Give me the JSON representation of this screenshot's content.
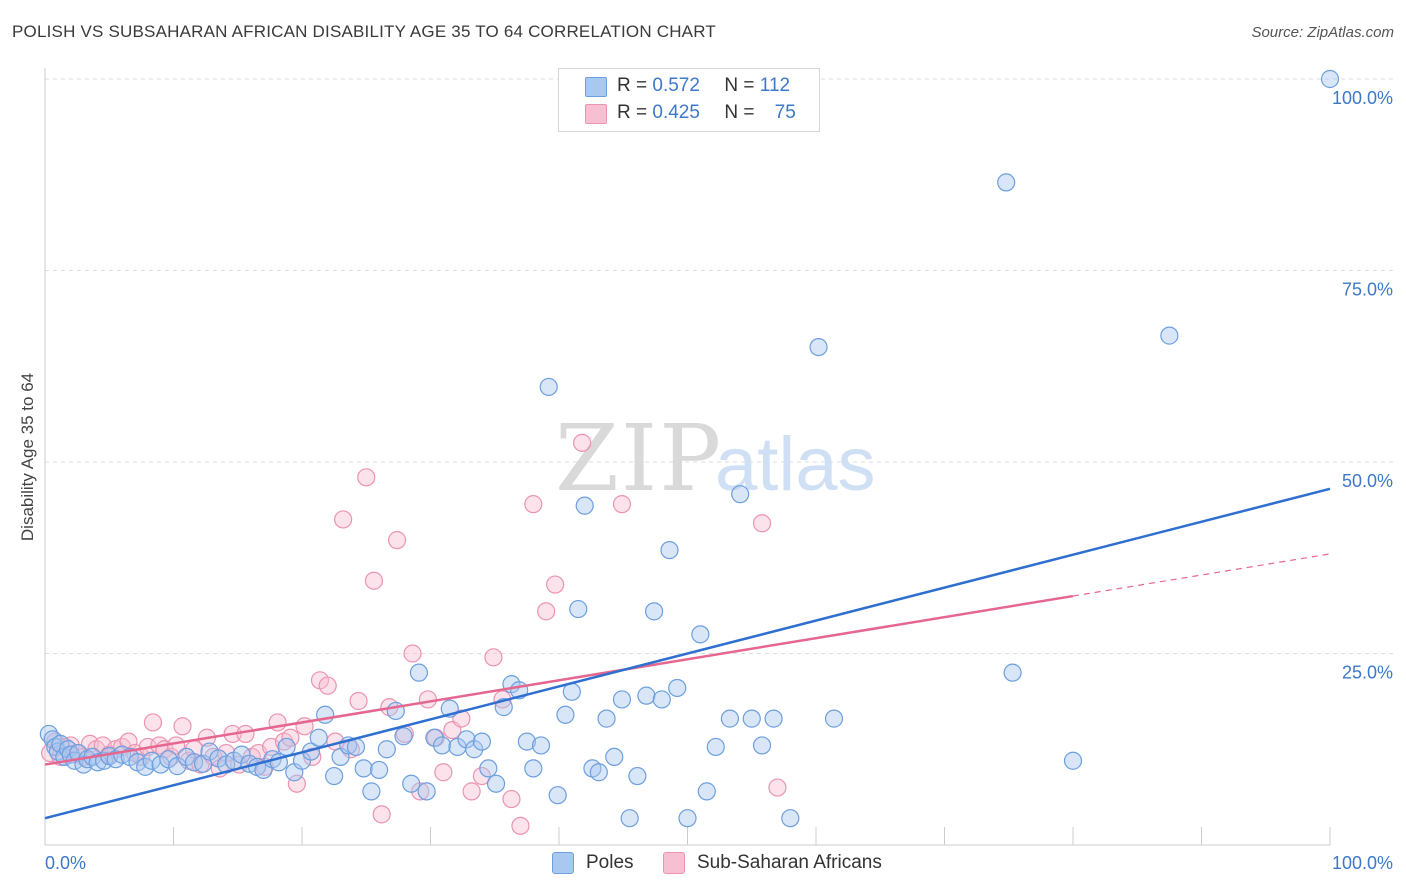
{
  "title": "POLISH VS SUBSAHARAN AFRICAN DISABILITY AGE 35 TO 64 CORRELATION CHART",
  "source": "Source: ZipAtlas.com",
  "watermark": {
    "zip": "ZIP",
    "atlas": "atlas"
  },
  "legend": {
    "r_label": "R =",
    "n_label": "N =",
    "poles": {
      "r": "0.572",
      "n": "112"
    },
    "africans": {
      "r": "0.425",
      "n": "75"
    }
  },
  "colors": {
    "poles_fill": "#a9c8f0",
    "poles_stroke": "#6d9fde",
    "poles_line": "#2e6fd0",
    "africans_fill": "#f7bfd2",
    "africans_stroke": "#ec93b3",
    "africans_line": "#e5668f",
    "tick_label": "#3d78c9",
    "grid": "#dcdcdc"
  },
  "chart_data": {
    "type": "scatter",
    "title": "POLISH VS SUBSAHARAN AFRICAN DISABILITY AGE 35 TO 64 CORRELATION CHART",
    "xlabel": "",
    "ylabel": "Disability Age 35 to 64",
    "xlim": [
      0,
      100
    ],
    "ylim": [
      0,
      100
    ],
    "x_tick_labels": [
      "0.0%",
      "100.0%"
    ],
    "y_tick_labels": [
      "25.0%",
      "50.0%",
      "75.0%",
      "100.0%"
    ],
    "y_ticks": [
      25,
      50,
      75,
      100
    ],
    "grid": true,
    "legend_position": "top-center",
    "series": [
      {
        "name": "Poles",
        "r": 0.572,
        "n": 112,
        "trend": {
          "x0": 0,
          "y0": 3.5,
          "x1": 100,
          "y1": 46.5
        },
        "points": [
          [
            0.3,
            14.5
          ],
          [
            0.6,
            13.8
          ],
          [
            0.8,
            12.8
          ],
          [
            1.0,
            12.2
          ],
          [
            1.2,
            13.2
          ],
          [
            1.5,
            11.5
          ],
          [
            1.8,
            12.5
          ],
          [
            2.0,
            11.8
          ],
          [
            2.3,
            11.0
          ],
          [
            2.6,
            12.0
          ],
          [
            3.0,
            10.5
          ],
          [
            3.3,
            11.2
          ],
          [
            3.7,
            11.5
          ],
          [
            4.1,
            10.8
          ],
          [
            4.6,
            11.0
          ],
          [
            5.0,
            11.6
          ],
          [
            5.5,
            11.2
          ],
          [
            6.0,
            11.8
          ],
          [
            6.6,
            11.5
          ],
          [
            7.2,
            10.8
          ],
          [
            7.8,
            10.2
          ],
          [
            8.3,
            11.0
          ],
          [
            9.0,
            10.5
          ],
          [
            9.6,
            11.2
          ],
          [
            10.3,
            10.3
          ],
          [
            11.0,
            11.5
          ],
          [
            11.6,
            10.8
          ],
          [
            12.3,
            10.6
          ],
          [
            12.8,
            12.2
          ],
          [
            13.5,
            11.3
          ],
          [
            14.1,
            10.5
          ],
          [
            14.7,
            11.0
          ],
          [
            15.3,
            11.8
          ],
          [
            15.9,
            10.6
          ],
          [
            16.5,
            10.2
          ],
          [
            17.0,
            9.8
          ],
          [
            17.7,
            11.2
          ],
          [
            18.2,
            10.8
          ],
          [
            18.8,
            12.8
          ],
          [
            19.4,
            9.5
          ],
          [
            20.0,
            11.0
          ],
          [
            20.7,
            12.2
          ],
          [
            21.3,
            14.0
          ],
          [
            21.8,
            17.0
          ],
          [
            22.5,
            9.0
          ],
          [
            23.0,
            11.5
          ],
          [
            23.6,
            13.0
          ],
          [
            24.2,
            12.8
          ],
          [
            24.8,
            10.0
          ],
          [
            25.4,
            7.0
          ],
          [
            26.0,
            9.8
          ],
          [
            26.6,
            12.5
          ],
          [
            27.3,
            17.5
          ],
          [
            27.9,
            14.2
          ],
          [
            28.5,
            8.0
          ],
          [
            29.1,
            22.5
          ],
          [
            29.7,
            7.0
          ],
          [
            30.3,
            14.0
          ],
          [
            30.9,
            13.0
          ],
          [
            31.5,
            17.8
          ],
          [
            32.1,
            12.8
          ],
          [
            32.8,
            13.8
          ],
          [
            33.4,
            12.5
          ],
          [
            34.0,
            13.5
          ],
          [
            34.5,
            10.0
          ],
          [
            35.1,
            8.0
          ],
          [
            35.7,
            18.0
          ],
          [
            36.3,
            21.0
          ],
          [
            36.9,
            20.2
          ],
          [
            37.5,
            13.5
          ],
          [
            38.0,
            10.0
          ],
          [
            38.6,
            13.0
          ],
          [
            39.2,
            59.8
          ],
          [
            39.9,
            6.5
          ],
          [
            40.5,
            17.0
          ],
          [
            41.0,
            20.0
          ],
          [
            41.5,
            30.8
          ],
          [
            42.0,
            44.3
          ],
          [
            42.6,
            10.0
          ],
          [
            43.1,
            9.5
          ],
          [
            43.7,
            16.5
          ],
          [
            44.3,
            11.5
          ],
          [
            44.9,
            19.0
          ],
          [
            45.5,
            3.5
          ],
          [
            46.1,
            9.0
          ],
          [
            46.8,
            19.5
          ],
          [
            47.4,
            30.5
          ],
          [
            48.0,
            19.0
          ],
          [
            48.6,
            38.5
          ],
          [
            49.2,
            20.5
          ],
          [
            50.0,
            3.5
          ],
          [
            51.0,
            27.5
          ],
          [
            51.5,
            7.0
          ],
          [
            52.2,
            12.8
          ],
          [
            53.3,
            16.5
          ],
          [
            54.1,
            45.8
          ],
          [
            55.0,
            16.5
          ],
          [
            55.8,
            13.0
          ],
          [
            56.7,
            16.5
          ],
          [
            58.0,
            3.5
          ],
          [
            60.2,
            65.0
          ],
          [
            61.4,
            16.5
          ],
          [
            74.8,
            86.5
          ],
          [
            75.3,
            22.5
          ],
          [
            80.0,
            11.0
          ],
          [
            87.5,
            66.5
          ],
          [
            100.0,
            100.0
          ]
        ]
      },
      {
        "name": "Sub-Saharan Africans",
        "r": 0.425,
        "n": 75,
        "trend": {
          "x0": 0,
          "y0": 10.5,
          "x1": 80,
          "y1": 32.5
        },
        "trend_extension": {
          "x0": 80,
          "y0": 32.5,
          "x1": 100,
          "y1": 38.0
        },
        "points": [
          [
            0.4,
            12.0
          ],
          [
            0.8,
            13.5
          ],
          [
            1.2,
            11.5
          ],
          [
            1.6,
            12.8
          ],
          [
            2.0,
            13.0
          ],
          [
            2.5,
            12.0
          ],
          [
            3.0,
            11.5
          ],
          [
            3.5,
            13.2
          ],
          [
            4.0,
            12.5
          ],
          [
            4.5,
            13.0
          ],
          [
            5.0,
            11.8
          ],
          [
            5.5,
            12.5
          ],
          [
            6.0,
            12.8
          ],
          [
            6.5,
            13.5
          ],
          [
            7.0,
            12.0
          ],
          [
            7.5,
            11.5
          ],
          [
            8.0,
            12.8
          ],
          [
            8.4,
            16.0
          ],
          [
            8.9,
            13.0
          ],
          [
            9.3,
            12.5
          ],
          [
            9.8,
            11.5
          ],
          [
            10.2,
            13.0
          ],
          [
            10.7,
            15.5
          ],
          [
            11.2,
            11.0
          ],
          [
            11.6,
            12.5
          ],
          [
            12.1,
            10.5
          ],
          [
            12.6,
            14.0
          ],
          [
            13.1,
            11.5
          ],
          [
            13.6,
            10.0
          ],
          [
            14.1,
            12.0
          ],
          [
            14.6,
            14.5
          ],
          [
            15.1,
            10.5
          ],
          [
            15.6,
            14.5
          ],
          [
            16.1,
            11.5
          ],
          [
            16.6,
            12.0
          ],
          [
            17.1,
            10.2
          ],
          [
            17.6,
            12.8
          ],
          [
            18.1,
            16.0
          ],
          [
            18.6,
            13.5
          ],
          [
            19.1,
            14.0
          ],
          [
            19.6,
            8.0
          ],
          [
            20.2,
            15.5
          ],
          [
            20.8,
            11.5
          ],
          [
            21.4,
            21.5
          ],
          [
            22.0,
            20.8
          ],
          [
            22.6,
            13.5
          ],
          [
            23.2,
            42.5
          ],
          [
            23.8,
            12.5
          ],
          [
            24.4,
            18.8
          ],
          [
            25.0,
            48.0
          ],
          [
            25.6,
            34.5
          ],
          [
            26.2,
            4.0
          ],
          [
            26.8,
            18.0
          ],
          [
            27.4,
            39.8
          ],
          [
            28.0,
            14.5
          ],
          [
            28.6,
            25.0
          ],
          [
            29.2,
            7.0
          ],
          [
            29.8,
            19.0
          ],
          [
            30.4,
            14.0
          ],
          [
            31.0,
            9.5
          ],
          [
            31.7,
            15.0
          ],
          [
            32.4,
            16.5
          ],
          [
            33.2,
            7.0
          ],
          [
            34.0,
            9.0
          ],
          [
            34.9,
            24.5
          ],
          [
            35.6,
            19.0
          ],
          [
            36.3,
            6.0
          ],
          [
            37.0,
            2.5
          ],
          [
            38.0,
            44.5
          ],
          [
            39.0,
            30.5
          ],
          [
            39.7,
            34.0
          ],
          [
            41.8,
            52.5
          ],
          [
            44.9,
            44.5
          ],
          [
            55.8,
            42.0
          ],
          [
            57.0,
            7.5
          ]
        ]
      }
    ]
  }
}
